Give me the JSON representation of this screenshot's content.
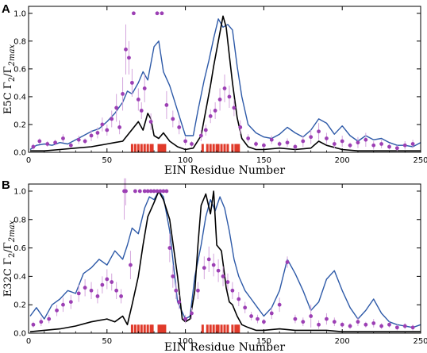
{
  "colors": {
    "profile": "#2e5aa8",
    "mean": "#000000",
    "points": "#9c3fb4",
    "errorbars": "#d4a6dd",
    "residue_bars": "#e03a2a"
  },
  "chart_data": [
    {
      "panel_label": "A",
      "type": "scatter",
      "xlabel": "EIN Residue Number",
      "ylabel": "E5C Γ2/Γ2max",
      "ylabel_main": "E5C Γ",
      "ylabel_sub1": "2",
      "ylabel_mid": "/Γ",
      "ylabel_sub2": "2max",
      "xlim": [
        0,
        250
      ],
      "ylim": [
        0,
        1.05
      ],
      "xticks": [
        0,
        50,
        100,
        150,
        200,
        250
      ],
      "yticks": [
        0,
        0.2,
        0.4,
        0.6,
        0.8,
        1.0
      ],
      "ytick_labels": [
        "0.0",
        "0.2",
        "0.4",
        "0.6",
        "0.8",
        "1.0"
      ],
      "series": [
        {
          "style": "line",
          "color": "#2e5aa8",
          "x": [
            1,
            5,
            10,
            15,
            20,
            25,
            30,
            35,
            40,
            45,
            50,
            55,
            60,
            63,
            66,
            70,
            73,
            76,
            80,
            83,
            86,
            90,
            95,
            100,
            105,
            108,
            112,
            115,
            118,
            121,
            124,
            127,
            130,
            133,
            136,
            140,
            145,
            150,
            155,
            160,
            165,
            170,
            175,
            180,
            185,
            190,
            195,
            200,
            205,
            210,
            215,
            220,
            225,
            230,
            235,
            240,
            245,
            250
          ],
          "y": [
            0.02,
            0.05,
            0.06,
            0.05,
            0.07,
            0.06,
            0.09,
            0.12,
            0.15,
            0.17,
            0.22,
            0.28,
            0.36,
            0.44,
            0.42,
            0.5,
            0.58,
            0.52,
            0.76,
            0.8,
            0.58,
            0.48,
            0.3,
            0.12,
            0.12,
            0.3,
            0.52,
            0.66,
            0.82,
            0.96,
            0.9,
            0.92,
            0.88,
            0.62,
            0.4,
            0.2,
            0.14,
            0.11,
            0.1,
            0.13,
            0.18,
            0.14,
            0.11,
            0.16,
            0.24,
            0.21,
            0.13,
            0.19,
            0.12,
            0.08,
            0.12,
            0.09,
            0.1,
            0.07,
            0.05,
            0.05,
            0.04,
            0.07
          ]
        },
        {
          "style": "line",
          "color": "#000000",
          "x": [
            1,
            10,
            20,
            30,
            40,
            50,
            55,
            60,
            65,
            70,
            73,
            76,
            78,
            80,
            83,
            86,
            90,
            95,
            100,
            105,
            110,
            113,
            116,
            118,
            121,
            124,
            126,
            128,
            130,
            133,
            136,
            140,
            145,
            150,
            160,
            170,
            180,
            185,
            190,
            200,
            210,
            220,
            230,
            240,
            250
          ],
          "y": [
            0.01,
            0.01,
            0.02,
            0.03,
            0.04,
            0.06,
            0.07,
            0.08,
            0.15,
            0.22,
            0.16,
            0.28,
            0.24,
            0.12,
            0.1,
            0.14,
            0.08,
            0.04,
            0.02,
            0.03,
            0.12,
            0.3,
            0.48,
            0.62,
            0.8,
            0.98,
            0.9,
            0.7,
            0.5,
            0.25,
            0.1,
            0.04,
            0.02,
            0.02,
            0.03,
            0.02,
            0.03,
            0.08,
            0.05,
            0.02,
            0.01,
            0.01,
            0.01,
            0.01,
            0.01
          ]
        },
        {
          "style": "points",
          "color": "#9c3fb4",
          "x": [
            3,
            7,
            12,
            17,
            22,
            27,
            32,
            36,
            40,
            44,
            47,
            50,
            53,
            56,
            58,
            60,
            62,
            64,
            66,
            67,
            70,
            72,
            74,
            78,
            82,
            85,
            88,
            92,
            96,
            100,
            104,
            110,
            113,
            116,
            119,
            122,
            125,
            128,
            131,
            135,
            140,
            145,
            150,
            155,
            160,
            165,
            170,
            175,
            180,
            185,
            190,
            195,
            200,
            205,
            210,
            215,
            220,
            225,
            230,
            235,
            240,
            245
          ],
          "y": [
            0.04,
            0.08,
            0.06,
            0.07,
            0.1,
            0.05,
            0.09,
            0.08,
            0.12,
            0.14,
            0.2,
            0.16,
            0.24,
            0.32,
            0.18,
            0.42,
            0.74,
            0.68,
            0.5,
            1.0,
            0.38,
            0.3,
            0.46,
            0.22,
            1.0,
            1.0,
            0.34,
            0.24,
            0.18,
            0.08,
            0.06,
            0.12,
            0.16,
            0.26,
            0.3,
            0.38,
            0.46,
            0.4,
            0.32,
            0.18,
            0.1,
            0.06,
            0.05,
            0.09,
            0.06,
            0.07,
            0.04,
            0.08,
            0.11,
            0.15,
            0.1,
            0.06,
            0.08,
            0.05,
            0.07,
            0.09,
            0.05,
            0.06,
            0.04,
            0.03,
            0.05,
            0.06
          ],
          "err": [
            0.02,
            0.02,
            0.02,
            0.02,
            0.03,
            0.02,
            0.03,
            0.02,
            0.04,
            0.04,
            0.05,
            0.04,
            0.06,
            0.1,
            0.05,
            0.12,
            0.18,
            0.12,
            0.1,
            0.0,
            0.08,
            0.06,
            0.1,
            0.06,
            0.0,
            0.0,
            0.1,
            0.06,
            0.05,
            0.03,
            0.02,
            0.04,
            0.04,
            0.05,
            0.06,
            0.08,
            0.1,
            0.08,
            0.06,
            0.05,
            0.03,
            0.02,
            0.02,
            0.03,
            0.02,
            0.03,
            0.02,
            0.04,
            0.05,
            0.06,
            0.04,
            0.03,
            0.04,
            0.02,
            0.04,
            0.05,
            0.03,
            0.03,
            0.02,
            0.02,
            0.03,
            0.03
          ]
        },
        {
          "style": "residue_bars",
          "color": "#e03a2a",
          "x": [
            66,
            68,
            70,
            72,
            74,
            76,
            78,
            79,
            83,
            84,
            85,
            86,
            87,
            111,
            114,
            116,
            118,
            120,
            121,
            123,
            125,
            127,
            130,
            132,
            133,
            134
          ],
          "height": 0.06
        }
      ]
    },
    {
      "panel_label": "B",
      "type": "scatter",
      "xlabel": "EIN Residue Number",
      "ylabel": "E32C Γ2/Γ2max",
      "ylabel_main": "E32C Γ",
      "ylabel_sub1": "2",
      "ylabel_mid": "/Γ",
      "ylabel_sub2": "2max",
      "xlim": [
        0,
        250
      ],
      "ylim": [
        0,
        1.05
      ],
      "xticks": [
        0,
        50,
        100,
        150,
        200,
        250
      ],
      "yticks": [
        0,
        0.2,
        0.4,
        0.6,
        0.8,
        1.0
      ],
      "ytick_labels": [
        "0.0",
        "0.2",
        "0.4",
        "0.6",
        "0.8",
        "1.0"
      ],
      "series": [
        {
          "style": "line",
          "color": "#2e5aa8",
          "x": [
            1,
            5,
            10,
            15,
            20,
            25,
            30,
            35,
            40,
            45,
            50,
            55,
            60,
            63,
            66,
            70,
            74,
            77,
            80,
            83,
            86,
            90,
            95,
            100,
            103,
            106,
            110,
            113,
            116,
            119,
            122,
            125,
            128,
            131,
            134,
            138,
            142,
            146,
            150,
            155,
            160,
            165,
            170,
            175,
            180,
            185,
            190,
            195,
            200,
            205,
            210,
            215,
            220,
            225,
            230,
            235,
            240,
            245,
            250
          ],
          "y": [
            0.12,
            0.18,
            0.1,
            0.2,
            0.24,
            0.3,
            0.28,
            0.42,
            0.46,
            0.52,
            0.48,
            0.58,
            0.52,
            0.62,
            0.74,
            0.7,
            0.88,
            0.96,
            0.94,
            1.0,
            0.96,
            0.72,
            0.22,
            0.1,
            0.12,
            0.4,
            0.62,
            0.82,
            0.94,
            0.86,
            0.96,
            0.88,
            0.72,
            0.52,
            0.4,
            0.3,
            0.24,
            0.18,
            0.12,
            0.18,
            0.3,
            0.52,
            0.42,
            0.3,
            0.16,
            0.22,
            0.38,
            0.44,
            0.3,
            0.18,
            0.1,
            0.16,
            0.24,
            0.14,
            0.08,
            0.06,
            0.05,
            0.04,
            0.06
          ]
        },
        {
          "style": "line",
          "color": "#000000",
          "x": [
            1,
            10,
            20,
            30,
            40,
            50,
            55,
            60,
            63,
            66,
            70,
            73,
            76,
            80,
            83,
            86,
            90,
            95,
            98,
            100,
            103,
            106,
            108,
            110,
            113,
            116,
            118,
            120,
            123,
            126,
            128,
            130,
            133,
            136,
            140,
            145,
            150,
            160,
            170,
            180,
            190,
            200,
            210,
            220,
            230,
            240,
            250
          ],
          "y": [
            0.01,
            0.02,
            0.03,
            0.05,
            0.08,
            0.1,
            0.08,
            0.12,
            0.06,
            0.2,
            0.4,
            0.62,
            0.82,
            0.92,
            1.0,
            0.94,
            0.8,
            0.4,
            0.1,
            0.08,
            0.1,
            0.3,
            0.62,
            0.9,
            0.98,
            0.84,
            1.0,
            0.62,
            0.58,
            0.32,
            0.22,
            0.2,
            0.12,
            0.06,
            0.04,
            0.02,
            0.02,
            0.03,
            0.02,
            0.02,
            0.02,
            0.01,
            0.01,
            0.01,
            0.01,
            0.01,
            0.01
          ]
        },
        {
          "style": "points",
          "color": "#9c3fb4",
          "x": [
            3,
            8,
            13,
            18,
            22,
            27,
            32,
            36,
            40,
            44,
            47,
            50,
            53,
            56,
            59,
            61,
            62,
            65,
            68,
            71,
            74,
            76,
            78,
            80,
            82,
            84,
            86,
            88,
            90,
            92,
            94,
            96,
            100,
            104,
            108,
            112,
            115,
            118,
            121,
            124,
            127,
            130,
            134,
            138,
            142,
            146,
            150,
            155,
            160,
            165,
            170,
            175,
            180,
            185,
            190,
            195,
            200,
            205,
            210,
            215,
            220,
            225,
            230,
            235,
            240,
            245
          ],
          "y": [
            0.06,
            0.08,
            0.1,
            0.16,
            0.2,
            0.22,
            0.28,
            0.32,
            0.3,
            0.26,
            0.34,
            0.38,
            0.36,
            0.3,
            0.26,
            1.0,
            1.0,
            0.48,
            1.0,
            1.0,
            1.0,
            1.0,
            1.0,
            1.0,
            1.0,
            1.0,
            1.0,
            1.0,
            0.6,
            0.4,
            0.3,
            0.22,
            0.1,
            0.14,
            0.3,
            0.46,
            0.52,
            0.48,
            0.44,
            0.4,
            0.36,
            0.3,
            0.24,
            0.18,
            0.12,
            0.1,
            0.08,
            0.14,
            0.2,
            0.5,
            0.1,
            0.08,
            0.12,
            0.06,
            0.1,
            0.08,
            0.06,
            0.05,
            0.08,
            0.06,
            0.07,
            0.05,
            0.06,
            0.04,
            0.05,
            0.04
          ],
          "err": [
            0.02,
            0.03,
            0.03,
            0.04,
            0.05,
            0.05,
            0.06,
            0.06,
            0.06,
            0.05,
            0.06,
            0.07,
            0.06,
            0.06,
            0.05,
            0.2,
            0.1,
            0.1,
            0.0,
            0.0,
            0.0,
            0.0,
            0.0,
            0.0,
            0.0,
            0.0,
            0.0,
            0.0,
            0.1,
            0.08,
            0.06,
            0.05,
            0.03,
            0.04,
            0.06,
            0.08,
            0.09,
            0.08,
            0.08,
            0.07,
            0.06,
            0.06,
            0.05,
            0.04,
            0.03,
            0.03,
            0.02,
            0.04,
            0.05,
            0.04,
            0.03,
            0.03,
            0.08,
            0.03,
            0.04,
            0.03,
            0.02,
            0.02,
            0.03,
            0.02,
            0.03,
            0.02,
            0.02,
            0.02,
            0.02,
            0.02
          ]
        },
        {
          "style": "residue_bars",
          "color": "#e03a2a",
          "x": [
            66,
            68,
            70,
            72,
            74,
            76,
            78,
            79,
            83,
            84,
            85,
            86,
            87,
            111,
            114,
            116,
            118,
            120,
            121,
            123,
            125,
            127,
            130,
            132,
            133,
            134
          ],
          "height": 0.06
        }
      ]
    }
  ]
}
